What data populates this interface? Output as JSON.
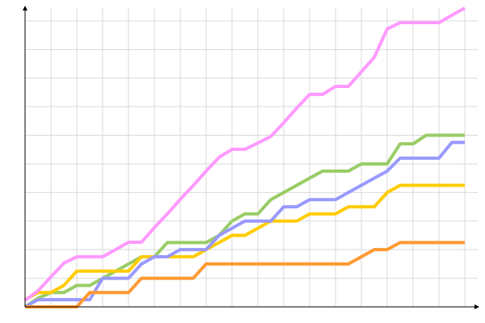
{
  "chart_data": {
    "type": "line",
    "x": [
      0,
      1,
      2,
      3,
      4,
      5,
      6,
      7,
      8,
      9,
      10,
      11,
      12,
      13,
      14,
      15,
      16,
      17,
      18,
      19,
      20,
      21,
      22,
      23,
      24,
      25,
      26,
      27,
      28,
      29,
      30,
      31,
      32,
      33,
      34
    ],
    "xlim": [
      0,
      35
    ],
    "xticks": [
      0,
      2,
      4,
      6,
      8,
      10,
      12,
      14,
      16,
      18,
      20,
      22,
      24,
      26,
      28,
      30,
      32,
      34
    ],
    "ylim": [
      0,
      10.45
    ],
    "yticks": [
      0,
      1,
      2,
      3,
      4,
      5,
      6,
      7,
      8,
      9,
      10
    ],
    "grid": true,
    "series": [
      {
        "color": "#99cc66",
        "values": [
          0,
          0.3,
          0.5,
          0.5,
          0.75,
          0.75,
          1,
          1.25,
          1.5,
          1.75,
          1.75,
          2.25,
          2.25,
          2.25,
          2.25,
          2.5,
          3,
          3.25,
          3.25,
          3.75,
          4,
          4.25,
          4.5,
          4.75,
          4.75,
          4.75,
          5,
          5,
          5,
          5.7,
          5.7,
          6,
          6,
          6,
          6
        ]
      },
      {
        "color": "#ffcc00",
        "values": [
          0.25,
          0.5,
          0.5,
          0.75,
          1.25,
          1.25,
          1.25,
          1.25,
          1.25,
          1.75,
          1.75,
          1.75,
          1.75,
          1.75,
          2,
          2.25,
          2.5,
          2.5,
          2.75,
          3,
          3,
          3,
          3.25,
          3.25,
          3.25,
          3.5,
          3.5,
          3.5,
          4,
          4.25,
          4.25,
          4.25,
          4.25,
          4.25,
          4.25
        ]
      },
      {
        "color": "#9999ff",
        "values": [
          0,
          0.25,
          0.25,
          0.25,
          0.25,
          0.25,
          1,
          1,
          1,
          1.5,
          1.75,
          1.75,
          2,
          2,
          2,
          2.5,
          2.75,
          3,
          3,
          3,
          3.5,
          3.5,
          3.75,
          3.75,
          3.75,
          4,
          4.25,
          4.5,
          4.75,
          5.2,
          5.2,
          5.2,
          5.2,
          5.75,
          5.75
        ]
      },
      {
        "color": "#ff9933",
        "values": [
          0,
          0,
          0,
          0,
          0,
          0.5,
          0.5,
          0.5,
          0.5,
          1,
          1,
          1,
          1,
          1,
          1.5,
          1.5,
          1.5,
          1.5,
          1.5,
          1.5,
          1.5,
          1.5,
          1.5,
          1.5,
          1.5,
          1.5,
          1.75,
          2,
          2,
          2.25,
          2.25,
          2.25,
          2.25,
          2.25,
          2.25
        ]
      },
      {
        "color": "#ff99ff",
        "values": [
          0.23,
          0.56,
          1.05,
          1.53,
          1.75,
          1.75,
          1.75,
          2,
          2.26,
          2.26,
          2.77,
          3.25,
          3.76,
          4.24,
          4.75,
          5.23,
          5.51,
          5.51,
          5.73,
          5.96,
          6.44,
          6.95,
          7.43,
          7.43,
          7.71,
          7.71,
          8.22,
          8.73,
          9.72,
          9.94,
          9.94,
          9.94,
          9.94,
          10.2,
          10.45
        ]
      }
    ]
  }
}
